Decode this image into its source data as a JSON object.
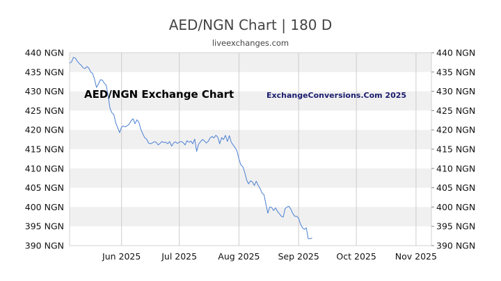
{
  "chart_data": {
    "type": "line",
    "title": "AED/NGN Chart | 180 D",
    "subtitle": "liveexchanges.com",
    "watermark_left": "AED/NGN Exchange Chart",
    "watermark_right": "ExchangeConversions.Com 2025",
    "y_unit_suffix": " NGN",
    "ylim": [
      390,
      440
    ],
    "y_ticks": [
      440,
      435,
      430,
      425,
      420,
      415,
      410,
      405,
      400,
      395,
      390
    ],
    "x_ticks": [
      {
        "label": "Jun 2025",
        "x": 27
      },
      {
        "label": "Jul 2025",
        "x": 57
      },
      {
        "label": "Aug 2025",
        "x": 88
      },
      {
        "label": "Sep 2025",
        "x": 119
      },
      {
        "label": "Oct 2025",
        "x": 149
      },
      {
        "label": "Nov 2025",
        "x": 180
      }
    ],
    "xlim": [
      0,
      188
    ],
    "grid": true,
    "line_color": "#4a7fd4",
    "band_color": "#f0f0f0",
    "series": [
      {
        "values": [
          [
            0,
            437.3
          ],
          [
            1,
            437.6
          ],
          [
            2,
            438.8
          ],
          [
            3,
            438.6
          ],
          [
            4,
            437.8
          ],
          [
            5,
            437.2
          ],
          [
            6,
            436.8
          ],
          [
            7,
            436.1
          ],
          [
            8,
            435.9
          ],
          [
            9,
            436.4
          ],
          [
            10,
            436.0
          ],
          [
            11,
            435.0
          ],
          [
            12,
            434.6
          ],
          [
            13,
            433.0
          ],
          [
            14,
            431.0
          ],
          [
            15,
            431.9
          ],
          [
            16,
            433.0
          ],
          [
            17,
            432.9
          ],
          [
            18,
            432.1
          ],
          [
            19,
            431.6
          ],
          [
            20,
            429.0
          ],
          [
            21,
            425.6
          ],
          [
            22,
            424.4
          ],
          [
            23,
            424.0
          ],
          [
            24,
            421.8
          ],
          [
            25,
            420.6
          ],
          [
            26,
            419.3
          ],
          [
            27,
            420.7
          ],
          [
            28,
            421.0
          ],
          [
            29,
            420.8
          ],
          [
            30,
            421.1
          ],
          [
            31,
            421.5
          ],
          [
            32,
            422.4
          ],
          [
            33,
            422.9
          ],
          [
            34,
            421.6
          ],
          [
            35,
            422.6
          ],
          [
            36,
            422.0
          ],
          [
            37,
            420.2
          ],
          [
            38,
            419.0
          ],
          [
            39,
            418.0
          ],
          [
            40,
            417.6
          ],
          [
            41,
            416.6
          ],
          [
            42,
            416.4
          ],
          [
            43,
            416.6
          ],
          [
            44,
            416.9
          ],
          [
            45,
            416.8
          ],
          [
            46,
            416.1
          ],
          [
            47,
            416.5
          ],
          [
            48,
            417.0
          ],
          [
            49,
            416.7
          ],
          [
            50,
            416.8
          ],
          [
            51,
            416.4
          ],
          [
            52,
            417.0
          ],
          [
            53,
            415.8
          ],
          [
            54,
            416.6
          ],
          [
            55,
            416.9
          ],
          [
            56,
            416.5
          ],
          [
            57,
            416.8
          ],
          [
            58,
            417.0
          ],
          [
            59,
            416.7
          ],
          [
            60,
            416.1
          ],
          [
            61,
            417.2
          ],
          [
            62,
            416.8
          ],
          [
            63,
            417.1
          ],
          [
            64,
            416.4
          ],
          [
            65,
            417.6
          ],
          [
            66,
            414.4
          ],
          [
            67,
            416.3
          ],
          [
            68,
            416.9
          ],
          [
            69,
            417.5
          ],
          [
            70,
            417.2
          ],
          [
            71,
            416.6
          ],
          [
            72,
            417.0
          ],
          [
            73,
            417.9
          ],
          [
            74,
            418.3
          ],
          [
            75,
            417.9
          ],
          [
            76,
            418.6
          ],
          [
            77,
            418.1
          ],
          [
            78,
            416.4
          ],
          [
            79,
            418.0
          ],
          [
            80,
            417.5
          ],
          [
            81,
            418.6
          ],
          [
            82,
            417.0
          ],
          [
            83,
            418.5
          ],
          [
            84,
            416.8
          ],
          [
            85,
            416.1
          ],
          [
            86,
            415.4
          ],
          [
            87,
            414.5
          ],
          [
            88,
            412.5
          ],
          [
            89,
            410.9
          ],
          [
            90,
            410.5
          ],
          [
            91,
            409.0
          ],
          [
            92,
            407.0
          ],
          [
            93,
            406.0
          ],
          [
            94,
            406.8
          ],
          [
            95,
            406.5
          ],
          [
            96,
            405.6
          ],
          [
            97,
            406.7
          ],
          [
            98,
            405.6
          ],
          [
            99,
            404.8
          ],
          [
            100,
            403.6
          ],
          [
            101,
            403.2
          ],
          [
            102,
            400.8
          ],
          [
            103,
            398.4
          ],
          [
            104,
            400.0
          ],
          [
            105,
            399.9
          ],
          [
            106,
            399.1
          ],
          [
            107,
            399.8
          ],
          [
            108,
            398.9
          ],
          [
            109,
            398.3
          ],
          [
            110,
            397.6
          ],
          [
            111,
            397.4
          ],
          [
            112,
            399.6
          ],
          [
            113,
            400.0
          ],
          [
            114,
            400.2
          ],
          [
            115,
            399.4
          ],
          [
            116,
            398.3
          ],
          [
            117,
            397.6
          ],
          [
            118,
            397.6
          ],
          [
            119,
            397.1
          ],
          [
            120,
            395.6
          ],
          [
            121,
            394.6
          ],
          [
            122,
            394.2
          ],
          [
            123,
            394.6
          ],
          [
            124,
            391.8
          ],
          [
            125,
            391.8
          ],
          [
            126,
            392.0
          ]
        ]
      }
    ]
  }
}
